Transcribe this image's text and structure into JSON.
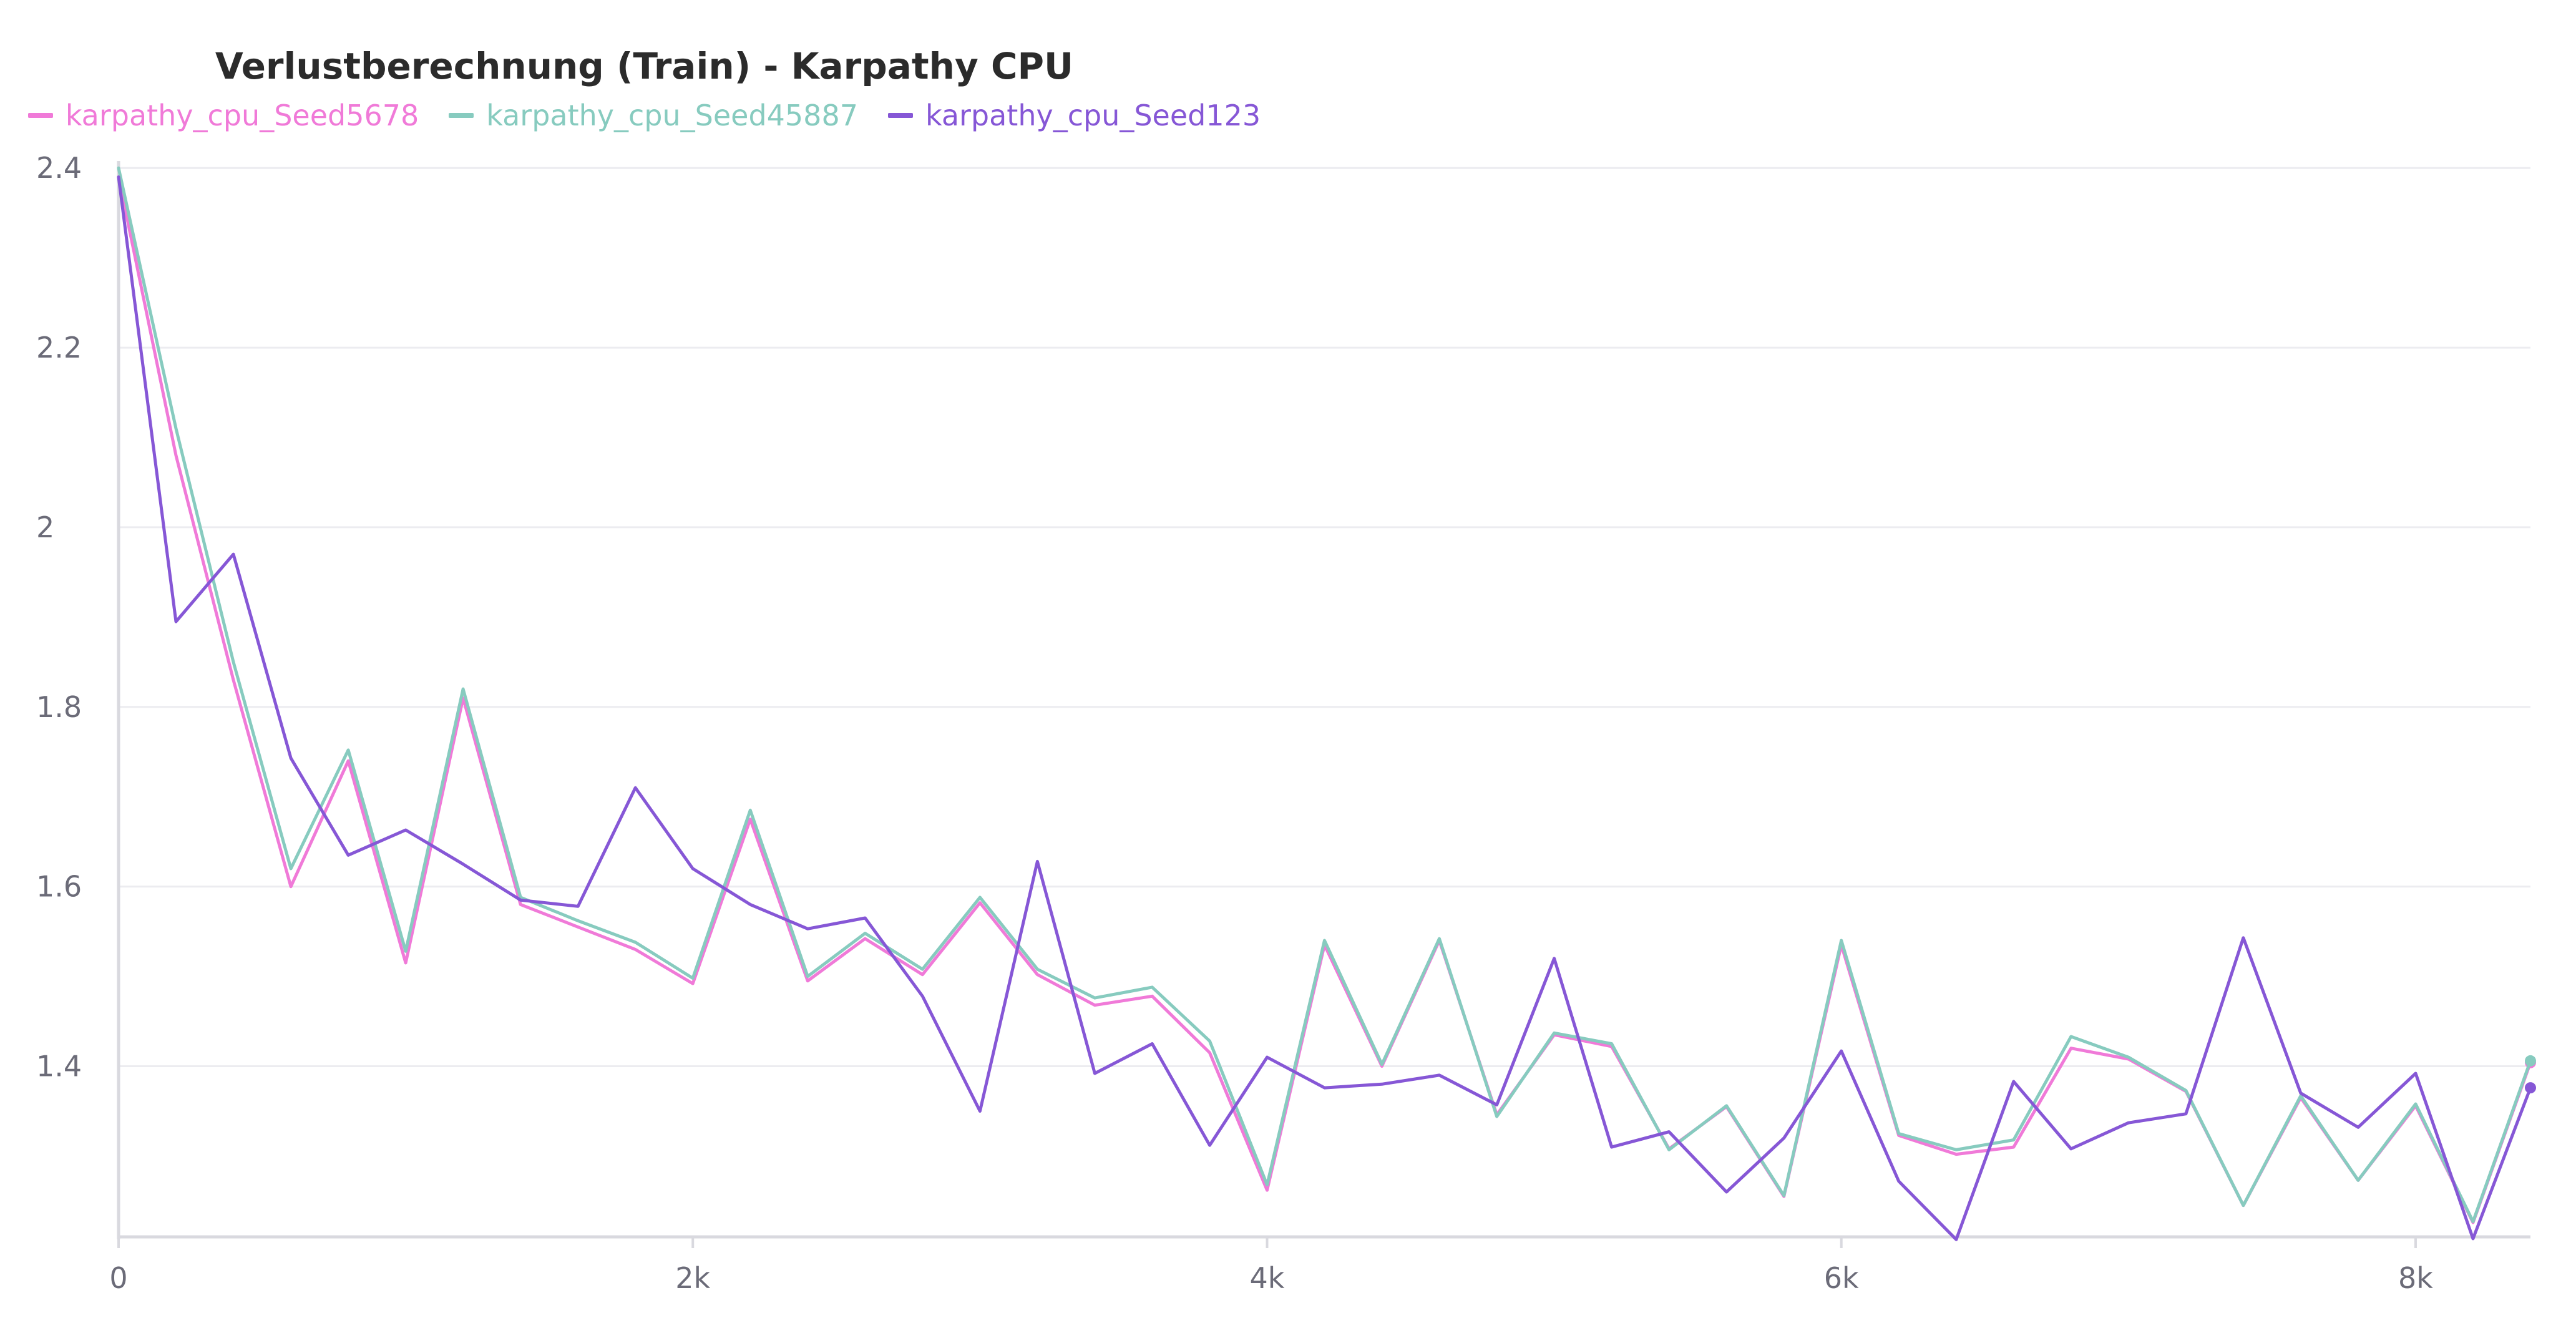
{
  "chart_data": {
    "type": "line",
    "title": "Verlustberechnung (Train) - Karpathy CPU",
    "xlabel": "",
    "ylabel": "",
    "xlim": [
      0,
      8400
    ],
    "ylim": [
      1.21,
      2.405
    ],
    "x_ticks": [
      0,
      2000,
      4000,
      6000,
      8000
    ],
    "x_tick_labels": [
      "0",
      "2k",
      "4k",
      "6k",
      "8k"
    ],
    "y_ticks": [
      1.4,
      1.6,
      1.8,
      2.0,
      2.2,
      2.4
    ],
    "y_tick_labels": [
      "1.4",
      "1.6",
      "1.8",
      "2",
      "2.2",
      "2.4"
    ],
    "grid": true,
    "legend_position": "top-center",
    "x": [
      0,
      200,
      400,
      600,
      800,
      1000,
      1200,
      1400,
      1600,
      1800,
      2000,
      2200,
      2400,
      2600,
      2800,
      3000,
      3200,
      3400,
      3600,
      3800,
      4000,
      4200,
      4400,
      4600,
      4800,
      5000,
      5200,
      5400,
      5600,
      5800,
      6000,
      6200,
      6400,
      6600,
      6800,
      7000,
      7200,
      7400,
      7600,
      7800,
      8000,
      8200,
      8400
    ],
    "series": [
      {
        "name": "karpathy_cpu_Seed5678",
        "color": "#f07ad8",
        "values": [
          2.39,
          2.08,
          1.83,
          1.6,
          1.74,
          1.515,
          1.81,
          1.58,
          1.555,
          1.53,
          1.492,
          1.675,
          1.495,
          1.542,
          1.502,
          1.582,
          1.502,
          1.468,
          1.478,
          1.415,
          1.262,
          1.535,
          1.4,
          1.54,
          1.346,
          1.435,
          1.422,
          1.308,
          1.355,
          1.255,
          1.535,
          1.323,
          1.302,
          1.31,
          1.42,
          1.408,
          1.372,
          1.245,
          1.365,
          1.273,
          1.356,
          1.226,
          1.404
        ]
      },
      {
        "name": "karpathy_cpu_Seed45887",
        "color": "#87cbbf",
        "values": [
          2.4,
          2.11,
          1.85,
          1.62,
          1.752,
          1.528,
          1.82,
          1.588,
          1.562,
          1.538,
          1.498,
          1.685,
          1.5,
          1.548,
          1.508,
          1.588,
          1.508,
          1.476,
          1.488,
          1.428,
          1.268,
          1.54,
          1.402,
          1.542,
          1.344,
          1.437,
          1.425,
          1.307,
          1.356,
          1.256,
          1.54,
          1.325,
          1.307,
          1.318,
          1.433,
          1.41,
          1.373,
          1.245,
          1.367,
          1.273,
          1.358,
          1.227,
          1.406
        ]
      },
      {
        "name": "karpathy_cpu_Seed123",
        "color": "#8657d6",
        "values": [
          2.39,
          1.895,
          1.97,
          1.743,
          1.635,
          1.663,
          1.625,
          1.585,
          1.578,
          1.71,
          1.62,
          1.58,
          1.553,
          1.565,
          1.478,
          1.35,
          1.628,
          1.392,
          1.425,
          1.312,
          1.41,
          1.376,
          1.38,
          1.39,
          1.357,
          1.52,
          1.31,
          1.327,
          1.26,
          1.32,
          1.417,
          1.272,
          1.207,
          1.383,
          1.308,
          1.337,
          1.347,
          1.543,
          1.37,
          1.332,
          1.392,
          1.208,
          1.376
        ]
      }
    ]
  }
}
